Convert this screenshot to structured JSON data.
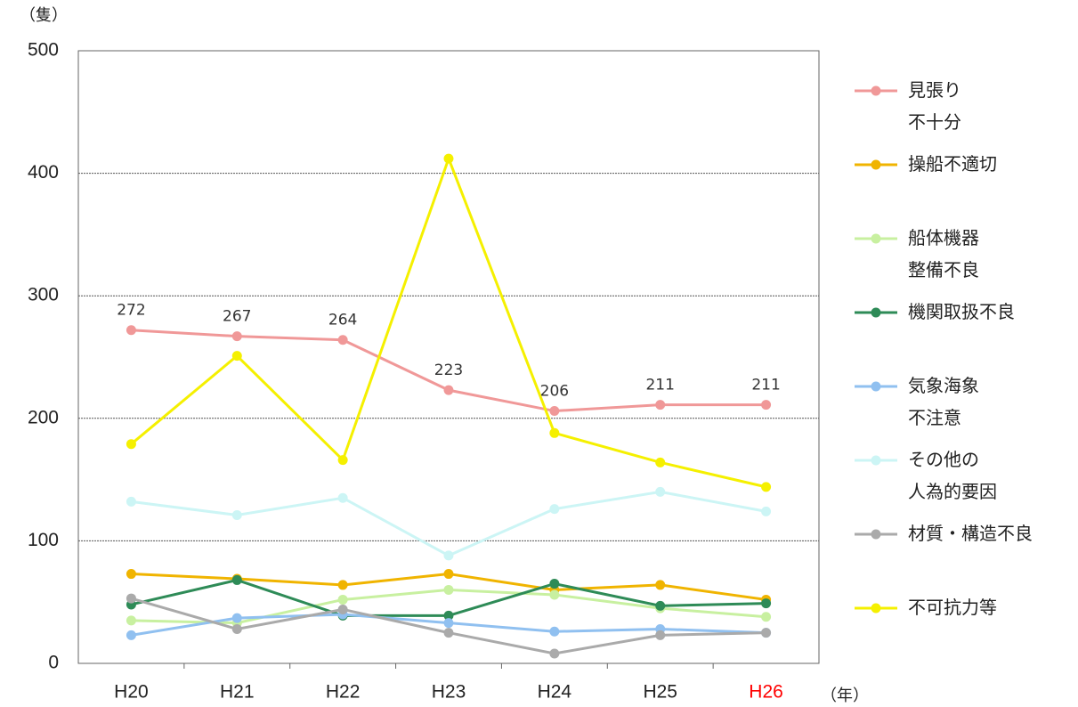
{
  "chart_data": {
    "type": "line",
    "y_label": "（隻）",
    "x_label": "（年）",
    "categories": [
      "H20",
      "H21",
      "H22",
      "H23",
      "H24",
      "H25",
      "H26"
    ],
    "category_colors": [
      "#222222",
      "#222222",
      "#222222",
      "#222222",
      "#222222",
      "#222222",
      "#ff0000"
    ],
    "ylim": [
      0,
      500
    ],
    "yticks": [
      0,
      100,
      200,
      300,
      400,
      500
    ],
    "grid": true,
    "legend": "right",
    "series": [
      {
        "name": "見張り\n不十分",
        "color": "#f09898",
        "values": [
          272,
          267,
          264,
          223,
          206,
          211,
          211
        ],
        "data_labels": true
      },
      {
        "name": "操船不適切",
        "color": "#f0b400",
        "values": [
          73,
          69,
          64,
          73,
          60,
          64,
          52
        ]
      },
      {
        "name": "船体機器\n整備不良",
        "color": "#c8f0a0",
        "values": [
          35,
          33,
          52,
          60,
          56,
          45,
          38
        ]
      },
      {
        "name": "機関取扱不良",
        "color": "#2e8b57",
        "values": [
          48,
          68,
          39,
          39,
          65,
          47,
          49
        ]
      },
      {
        "name": "気象海象\n不注意",
        "color": "#90c0f0",
        "values": [
          23,
          37,
          40,
          33,
          26,
          28,
          25
        ]
      },
      {
        "name": "その他の\n人為的要因",
        "color": "#ccf5f5",
        "values": [
          132,
          121,
          135,
          88,
          126,
          140,
          124
        ]
      },
      {
        "name": "材質・構造不良",
        "color": "#aaaaaa",
        "values": [
          53,
          28,
          44,
          25,
          8,
          23,
          25
        ]
      },
      {
        "name": "不可抗力等",
        "color": "#f5f000",
        "values": [
          179,
          251,
          166,
          412,
          188,
          164,
          144
        ]
      }
    ]
  }
}
